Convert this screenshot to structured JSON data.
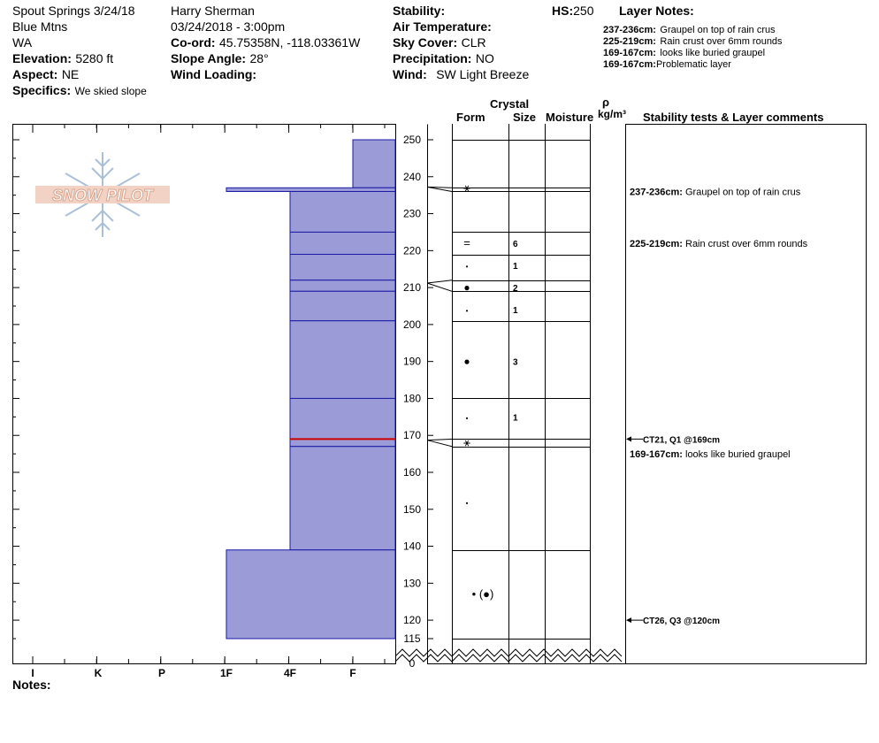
{
  "header": {
    "col1": {
      "location": "Spout Springs 3/24/18",
      "range": "Blue Mtns",
      "state": "WA",
      "elevation_label": "Elevation:",
      "elevation_value": "5280 ft",
      "aspect_label": "Aspect:",
      "aspect_value": "NE",
      "specifics_label": "Specifics:",
      "specifics_value": "We skied slope"
    },
    "col2": {
      "observer": "Harry Sherman",
      "datetime": "03/24/2018 - 3:00pm",
      "coord_label": "Co-ord:",
      "coord_value": "45.75358N, -118.03361W",
      "slope_label": "Slope Angle:",
      "slope_value": "28°",
      "wind_loading_label": "Wind Loading:"
    },
    "col3": {
      "stability_label": "Stability:",
      "air_temp_label": "Air Temperature:",
      "sky_label": "Sky Cover:",
      "sky_value": "CLR",
      "precip_label": "Precipitation:",
      "precip_value": "NO",
      "wind_label": "Wind:",
      "wind_value": "SW Light Breeze"
    },
    "hs_label": "HS:",
    "hs_value": "250",
    "layer_notes_title": "Layer Notes:",
    "layer_notes": [
      {
        "range": "237-236cm:",
        "text": "Graupel on top of rain crus"
      },
      {
        "range": "225-219cm:",
        "text": "Rain crust over 6mm rounds"
      },
      {
        "range": "169-167cm:",
        "text": "looks like buried graupel"
      },
      {
        "range": "169-167cm:",
        "text": "Problematic layer"
      }
    ]
  },
  "columns": {
    "crystal": "Crystal",
    "form": "Form",
    "size": "Size",
    "moisture": "Moisture",
    "rho": "ρ",
    "density_unit": "kg/m³",
    "stability": "Stability tests & Layer comments"
  },
  "logo_text": "SNOW PILOT",
  "notes_label": "Notes:",
  "colors": {
    "layer_fill": "#9b9bd8",
    "layer_stroke": "#1a1aa6",
    "problem_line": "#cc0000"
  },
  "chart_data": {
    "type": "snow-profile",
    "hardness_labels": [
      "I",
      "K",
      "P",
      "1F",
      "4F",
      "F"
    ],
    "height_ticks": [
      250,
      240,
      230,
      220,
      210,
      200,
      190,
      180,
      170,
      160,
      150,
      140,
      130,
      120,
      115,
      0
    ],
    "height_range": [
      115,
      250
    ],
    "hardness_layers": [
      {
        "top": 250,
        "bottom": 237,
        "hardness": "F"
      },
      {
        "top": 237,
        "bottom": 236,
        "hardness": "1F"
      },
      {
        "top": 236,
        "bottom": 225,
        "hardness": "4F"
      },
      {
        "top": 225,
        "bottom": 219,
        "hardness": "4F"
      },
      {
        "top": 219,
        "bottom": 212,
        "hardness": "4F"
      },
      {
        "top": 212,
        "bottom": 209,
        "hardness": "4F"
      },
      {
        "top": 209,
        "bottom": 201,
        "hardness": "4F"
      },
      {
        "top": 201,
        "bottom": 180,
        "hardness": "4F"
      },
      {
        "top": 180,
        "bottom": 169,
        "hardness": "4F"
      },
      {
        "top": 169,
        "bottom": 167,
        "hardness": "4F"
      },
      {
        "top": 167,
        "bottom": 139,
        "hardness": "4F"
      },
      {
        "top": 139,
        "bottom": 115,
        "hardness": "1F"
      }
    ],
    "problem_layer_height": 169,
    "crystal_layers": [
      {
        "height": 237,
        "form": "⚹",
        "size": ""
      },
      {
        "height": 222,
        "form": "=",
        "size": "6"
      },
      {
        "height": 216,
        "form": "•",
        "size": "1"
      },
      {
        "height": 210,
        "form": "●",
        "size": "2"
      },
      {
        "height": 204,
        "form": "•",
        "size": "1"
      },
      {
        "height": 190,
        "form": "●",
        "size": "3"
      },
      {
        "height": 175,
        "form": "•",
        "size": "1"
      },
      {
        "height": 168,
        "form": "⚹",
        "size": ""
      },
      {
        "height": 152,
        "form": "•",
        "size": ""
      },
      {
        "height": 127,
        "form": "• (●)",
        "size": ""
      }
    ],
    "stability_tests": [
      {
        "height": 169,
        "text": "CT21, Q1 @169cm"
      },
      {
        "height": 120,
        "text": "CT26, Q3 @120cm"
      }
    ],
    "layer_comments": [
      {
        "height": 236,
        "range": "237-236cm:",
        "text": "Graupel on top of rain crus"
      },
      {
        "height": 222,
        "range": "225-219cm:",
        "text": "Rain crust over 6mm rounds"
      },
      {
        "height": 165,
        "range": "169-167cm:",
        "text": "looks like buried graupel"
      }
    ]
  }
}
